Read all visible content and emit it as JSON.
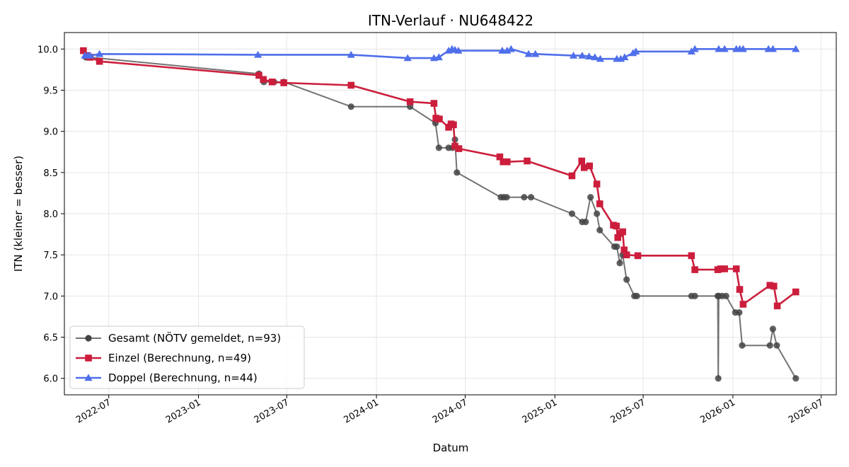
{
  "chart_data": {
    "type": "line",
    "title": "ITN-Verlauf · NU648422",
    "xlabel": "Datum",
    "ylabel": "ITN  (kleiner = besser)",
    "x_axis": "date",
    "xlim": [
      "2022-04-01",
      "2026-08-01"
    ],
    "ylim": [
      5.8,
      10.2
    ],
    "xticks": [
      "2022-07-01",
      "2023-01-01",
      "2023-07-01",
      "2024-01-01",
      "2024-07-01",
      "2025-01-01",
      "2025-07-01",
      "2026-01-01",
      "2026-07-01"
    ],
    "xtick_labels": [
      "2022-07",
      "2023-01",
      "2023-07",
      "2024-01",
      "2024-07",
      "2025-01",
      "2025-07",
      "2026-01",
      "2026-07"
    ],
    "yticks": [
      6.0,
      6.5,
      7.0,
      7.5,
      8.0,
      8.5,
      9.0,
      9.5,
      10.0
    ],
    "ytick_labels": [
      "6.0",
      "6.5",
      "7.0",
      "7.5",
      "8.0",
      "8.5",
      "9.0",
      "9.5",
      "10.0"
    ],
    "grid": true,
    "legend_position": "lower-left",
    "series": [
      {
        "name": "Gesamt (NÖTV gemeldet, n=93)",
        "color": "#444444",
        "marker": "circle",
        "points": [
          [
            "2022-05-15",
            9.9
          ],
          [
            "2022-05-18",
            9.9
          ],
          [
            "2022-05-22",
            9.9
          ],
          [
            "2023-05-05",
            9.7
          ],
          [
            "2023-05-15",
            9.6
          ],
          [
            "2023-06-05",
            9.6
          ],
          [
            "2023-06-25",
            9.6
          ],
          [
            "2023-11-10",
            9.3
          ],
          [
            "2024-03-10",
            9.3
          ],
          [
            "2024-05-01",
            9.1
          ],
          [
            "2024-05-08",
            8.8
          ],
          [
            "2024-05-28",
            8.8
          ],
          [
            "2024-06-05",
            8.8
          ],
          [
            "2024-06-10",
            8.9
          ],
          [
            "2024-06-14",
            8.5
          ],
          [
            "2024-09-12",
            8.2
          ],
          [
            "2024-09-18",
            8.2
          ],
          [
            "2024-09-24",
            8.2
          ],
          [
            "2024-10-30",
            8.2
          ],
          [
            "2024-11-13",
            8.2
          ],
          [
            "2025-02-05",
            8.0
          ],
          [
            "2025-02-26",
            7.9
          ],
          [
            "2025-03-05",
            7.9
          ],
          [
            "2025-03-15",
            8.2
          ],
          [
            "2025-03-28",
            8.0
          ],
          [
            "2025-04-03",
            7.8
          ],
          [
            "2025-05-03",
            7.6
          ],
          [
            "2025-05-08",
            7.6
          ],
          [
            "2025-05-14",
            7.4
          ],
          [
            "2025-05-20",
            7.5
          ],
          [
            "2025-05-28",
            7.2
          ],
          [
            "2025-06-13",
            7.0
          ],
          [
            "2025-06-18",
            7.0
          ],
          [
            "2025-10-08",
            7.0
          ],
          [
            "2025-10-15",
            7.0
          ],
          [
            "2025-12-01",
            7.0
          ],
          [
            "2025-12-02",
            6.0
          ],
          [
            "2025-12-03",
            7.0
          ],
          [
            "2025-12-10",
            7.0
          ],
          [
            "2025-12-18",
            7.0
          ],
          [
            "2026-01-06",
            6.8
          ],
          [
            "2026-01-14",
            6.8
          ],
          [
            "2026-01-20",
            6.4
          ],
          [
            "2026-03-18",
            6.4
          ],
          [
            "2026-03-24",
            6.6
          ],
          [
            "2026-04-01",
            6.4
          ],
          [
            "2026-05-10",
            6.0
          ]
        ]
      },
      {
        "name": "Einzel (Berechnung, n=49)",
        "color": "#cc1e3c",
        "marker": "square",
        "points": [
          [
            "2022-05-10",
            9.98
          ],
          [
            "2022-05-18",
            9.92
          ],
          [
            "2022-05-24",
            9.9
          ],
          [
            "2022-06-12",
            9.85
          ],
          [
            "2023-05-05",
            9.68
          ],
          [
            "2023-05-14",
            9.63
          ],
          [
            "2023-06-01",
            9.6
          ],
          [
            "2023-06-25",
            9.59
          ],
          [
            "2023-11-10",
            9.56
          ],
          [
            "2024-03-10",
            9.36
          ],
          [
            "2024-04-28",
            9.34
          ],
          [
            "2024-05-02",
            9.16
          ],
          [
            "2024-05-09",
            9.15
          ],
          [
            "2024-05-28",
            9.05
          ],
          [
            "2024-06-02",
            9.09
          ],
          [
            "2024-06-07",
            9.08
          ],
          [
            "2024-06-10",
            8.82
          ],
          [
            "2024-06-18",
            8.79
          ],
          [
            "2024-09-10",
            8.69
          ],
          [
            "2024-09-17",
            8.63
          ],
          [
            "2024-09-25",
            8.63
          ],
          [
            "2024-11-05",
            8.64
          ],
          [
            "2025-02-05",
            8.46
          ],
          [
            "2025-02-25",
            8.64
          ],
          [
            "2025-03-02",
            8.56
          ],
          [
            "2025-03-13",
            8.58
          ],
          [
            "2025-03-28",
            8.36
          ],
          [
            "2025-04-03",
            8.12
          ],
          [
            "2025-05-01",
            7.86
          ],
          [
            "2025-05-07",
            7.85
          ],
          [
            "2025-05-10",
            7.71
          ],
          [
            "2025-05-14",
            7.76
          ],
          [
            "2025-05-20",
            7.78
          ],
          [
            "2025-05-23",
            7.56
          ],
          [
            "2025-05-28",
            7.5
          ],
          [
            "2025-06-20",
            7.49
          ],
          [
            "2025-10-08",
            7.49
          ],
          [
            "2025-10-15",
            7.32
          ],
          [
            "2025-12-01",
            7.32
          ],
          [
            "2025-12-07",
            7.33
          ],
          [
            "2025-12-15",
            7.33
          ],
          [
            "2026-01-08",
            7.33
          ],
          [
            "2026-01-15",
            7.08
          ],
          [
            "2026-01-22",
            6.9
          ],
          [
            "2026-03-18",
            7.13
          ],
          [
            "2026-03-26",
            7.12
          ],
          [
            "2026-04-02",
            6.88
          ],
          [
            "2026-05-10",
            7.05
          ]
        ]
      },
      {
        "name": "Doppel (Berechnung, n=44)",
        "color": "#4f6fea",
        "marker": "triangle",
        "points": [
          [
            "2022-05-13",
            9.92
          ],
          [
            "2022-05-19",
            9.92
          ],
          [
            "2022-05-24",
            9.92
          ],
          [
            "2022-06-12",
            9.94
          ],
          [
            "2023-05-03",
            9.93
          ],
          [
            "2023-11-10",
            9.93
          ],
          [
            "2024-03-05",
            9.89
          ],
          [
            "2024-04-28",
            9.89
          ],
          [
            "2024-05-08",
            9.9
          ],
          [
            "2024-05-28",
            9.98
          ],
          [
            "2024-06-04",
            10.0
          ],
          [
            "2024-06-10",
            9.99
          ],
          [
            "2024-06-17",
            9.98
          ],
          [
            "2024-09-15",
            9.98
          ],
          [
            "2024-09-25",
            9.98
          ],
          [
            "2024-10-03",
            10.0
          ],
          [
            "2024-11-08",
            9.94
          ],
          [
            "2024-11-22",
            9.94
          ],
          [
            "2025-02-08",
            9.92
          ],
          [
            "2025-02-26",
            9.92
          ],
          [
            "2025-03-12",
            9.91
          ],
          [
            "2025-03-24",
            9.9
          ],
          [
            "2025-04-04",
            9.88
          ],
          [
            "2025-05-08",
            9.88
          ],
          [
            "2025-05-16",
            9.88
          ],
          [
            "2025-05-24",
            9.9
          ],
          [
            "2025-06-10",
            9.95
          ],
          [
            "2025-06-16",
            9.97
          ],
          [
            "2025-10-08",
            9.97
          ],
          [
            "2025-10-15",
            10.0
          ],
          [
            "2025-12-03",
            10.0
          ],
          [
            "2025-12-15",
            10.0
          ],
          [
            "2026-01-08",
            10.0
          ],
          [
            "2026-01-15",
            10.0
          ],
          [
            "2026-01-22",
            10.0
          ],
          [
            "2026-03-15",
            10.0
          ],
          [
            "2026-03-24",
            10.0
          ],
          [
            "2026-05-10",
            10.0
          ]
        ]
      }
    ]
  }
}
